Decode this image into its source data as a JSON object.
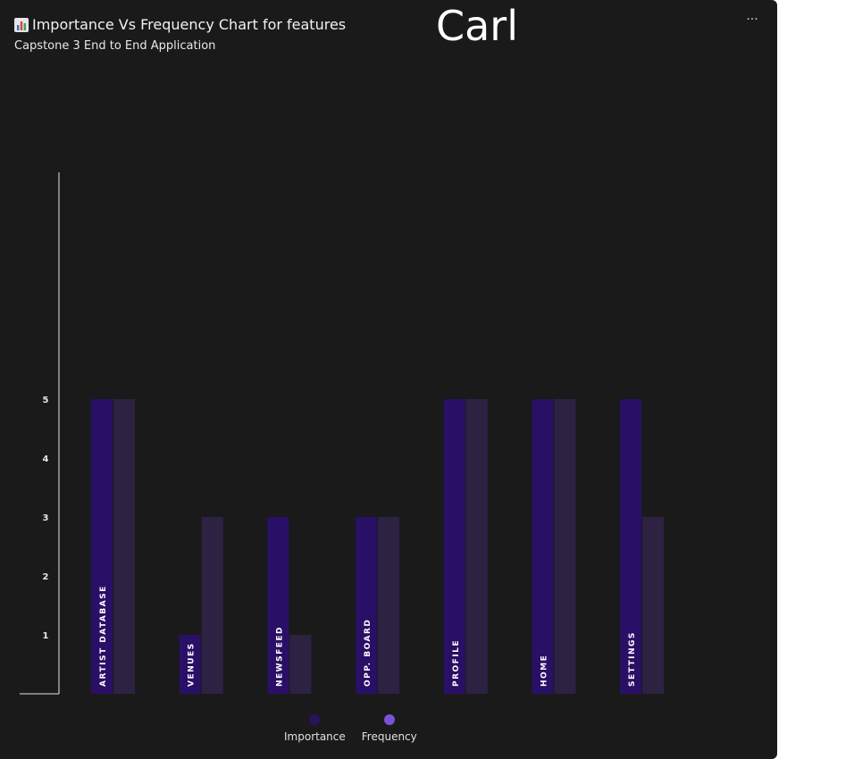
{
  "header": {
    "title": "Importance Vs Frequency Chart for features",
    "subtitle": "Capstone 3 End to End Application",
    "name": "Carl",
    "more_label": "···"
  },
  "chart_data": {
    "type": "bar",
    "categories": [
      "ARTIST DATABASE",
      "VENUES",
      "NEWSFEED",
      "OPP. BOARD",
      "PROFILE",
      "HOME",
      "SETTINGS"
    ],
    "series": [
      {
        "name": "Importance",
        "values": [
          5,
          1,
          3,
          3,
          5,
          5,
          5
        ],
        "color": "#2a0f66"
      },
      {
        "name": "Frequency",
        "values": [
          5,
          3,
          1,
          3,
          5,
          5,
          3
        ],
        "color": "#2d2242"
      }
    ],
    "legend_colors": [
      "#2a1160",
      "#7a52d8"
    ],
    "yticks": [
      1,
      2,
      3,
      4,
      5
    ],
    "ylim": [
      0,
      9.9
    ],
    "title": "Importance Vs Frequency Chart for features",
    "xlabel": "",
    "ylabel": "",
    "grid": false,
    "legend_position": "bottom-center"
  }
}
